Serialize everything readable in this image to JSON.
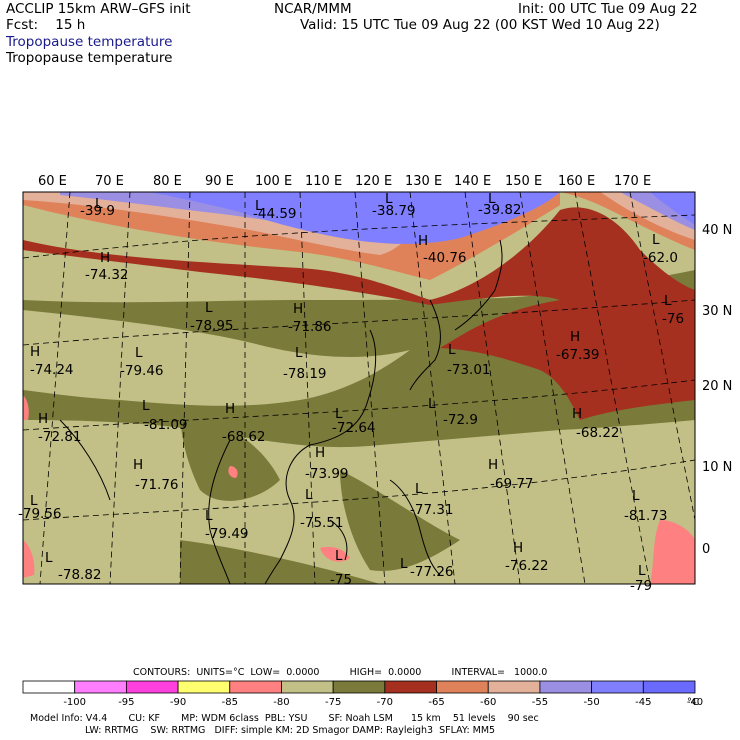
{
  "header": {
    "line1_left": "ACCLIP 15km ARW–GFS init",
    "line1_center": "NCAR/MMM",
    "line1_right": "Init: 00 UTC Tue 09 Aug 22",
    "line2_left": "Fcst:    15 h",
    "line2_right": "Valid: 15 UTC Tue 09 Aug 22 (00 KST Wed 10 Aug 22)",
    "title_1": "Tropopause temperature",
    "title_2": "Tropopause temperature"
  },
  "map": {
    "lon_labels": [
      "60 E",
      "70 E",
      "80 E",
      "90 E",
      "100 E",
      "110 E",
      "120 E",
      "130 E",
      "140 E",
      "150 E",
      "160 E",
      "170 E"
    ],
    "lat_labels": [
      "40 N",
      "30 N",
      "20 N",
      "10 N",
      "0"
    ],
    "markers": [
      {
        "type": "L",
        "value": "-39.9"
      },
      {
        "type": "L",
        "value": "-44.59"
      },
      {
        "type": "L",
        "value": "-38.79"
      },
      {
        "type": "L",
        "value": "-39.82"
      },
      {
        "type": "H",
        "value": "-40.76"
      },
      {
        "type": "L",
        "value": "-62.0"
      },
      {
        "type": "H",
        "value": "-74.32"
      },
      {
        "type": "L",
        "value": "-78.95"
      },
      {
        "type": "H",
        "value": "-71.86"
      },
      {
        "type": "L",
        "value": "-76"
      },
      {
        "type": "H",
        "value": "-67.39"
      },
      {
        "type": "H",
        "value": "-74.24"
      },
      {
        "type": "L",
        "value": "-79.46"
      },
      {
        "type": "L",
        "value": "-78.19"
      },
      {
        "type": "L",
        "value": "-73.01"
      },
      {
        "type": "H",
        "value": "-72.81"
      },
      {
        "type": "L",
        "value": "-81.09"
      },
      {
        "type": "H",
        "value": "-68.62"
      },
      {
        "type": "L",
        "value": "-72.64"
      },
      {
        "type": "L",
        "value": "-72.9"
      },
      {
        "type": "H",
        "value": "-68.22"
      },
      {
        "type": "H",
        "value": "-71.76"
      },
      {
        "type": "H",
        "value": "-73.99"
      },
      {
        "type": "H",
        "value": "-69.77"
      },
      {
        "type": "L",
        "value": "-79.56"
      },
      {
        "type": "L",
        "value": "-75.51"
      },
      {
        "type": "L",
        "value": "-77.31"
      },
      {
        "type": "L",
        "value": "-81.73"
      },
      {
        "type": "L",
        "value": "-79.49"
      },
      {
        "type": "H",
        "value": "-76.22"
      },
      {
        "type": "L",
        "value": "-78.82"
      },
      {
        "type": "L",
        "value": "-75"
      },
      {
        "type": "L",
        "value": "-77.26"
      },
      {
        "type": "L",
        "value": "-79"
      }
    ]
  },
  "legend": {
    "contours_line": "CONTOURS:  UNITS=°C  LOW=  0.0000          HIGH=  0.0000          INTERVAL=   1000.0",
    "ticks": [
      "-100",
      "-95",
      "-90",
      "-85",
      "-80",
      "-75",
      "-70",
      "-65",
      "-60",
      "-55",
      "-50",
      "-45",
      "-40"
    ],
    "unit": "°C",
    "colors": [
      "#ffffff",
      "#ff7eff",
      "#ff40df",
      "#ffff70",
      "#fe8080",
      "#c2c086",
      "#7a7a3a",
      "#a5301f",
      "#df825a",
      "#e3b09a",
      "#9a8fe3",
      "#7f7fff",
      "#6a6aff"
    ]
  },
  "footer": {
    "line1": "Model Info: V4.4       CU: KF       MP: WDM 6class  PBL: YSU       SF: Noah LSM      15 km    51 levels    90 sec",
    "line2": "LW: RRTMG    SW: RRTMG   DIFF: simple KM: 2D Smagor DAMP: Rayleigh3  SFLAY: MM5"
  }
}
